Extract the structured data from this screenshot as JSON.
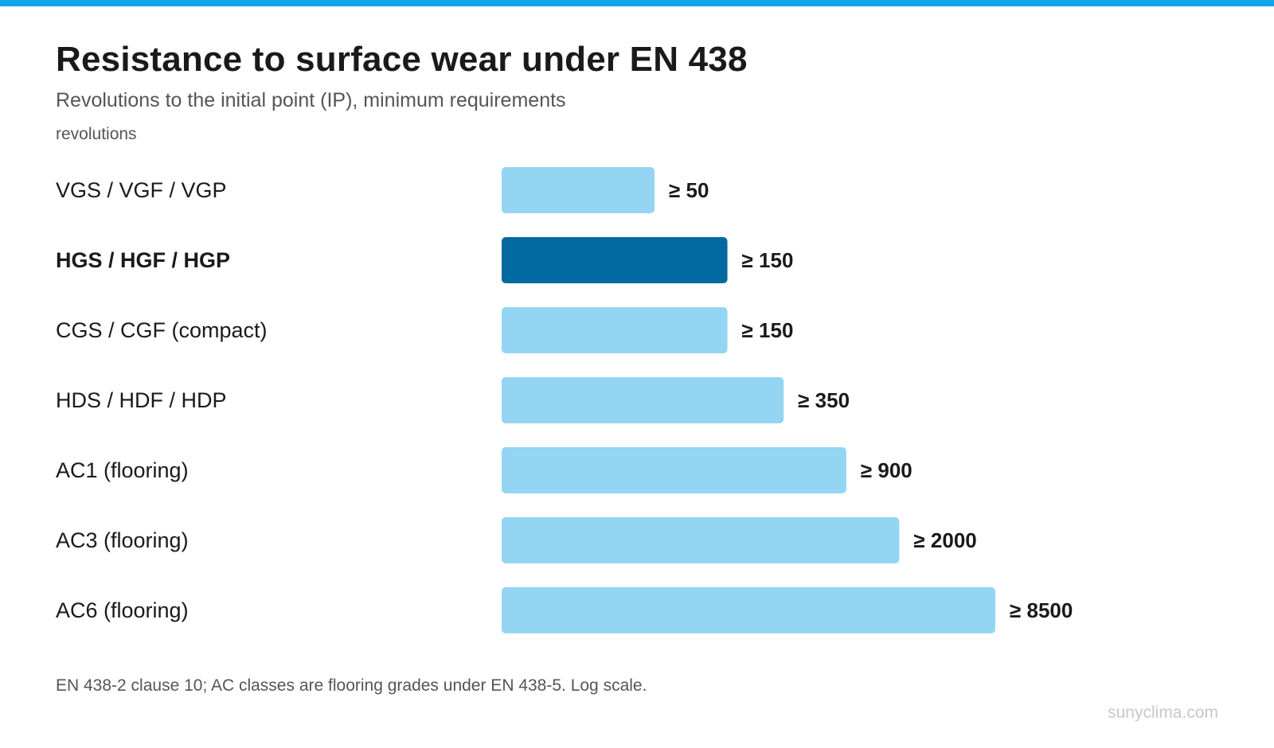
{
  "header": {
    "title": "Resistance to surface wear under EN 438",
    "subtitle": "Revolutions to the initial point (IP), minimum requirements",
    "unit_label": "revolutions"
  },
  "footer": {
    "note": "EN 438-2 clause 10; AC classes are flooring grades under EN 438-5. Log scale.",
    "credit": "sunyclima.com"
  },
  "colors": {
    "accent_bar": "#0ea5e9",
    "bar_default": "#93d5f3",
    "bar_highlight": "#0369a1"
  },
  "chart_data": {
    "type": "bar",
    "orientation": "horizontal",
    "scale": "log",
    "categories": [
      "VGS / VGF / VGP",
      "HGS / HGF / HGP",
      "CGS / CGF (compact)",
      "HDS / HDF / HDP",
      "AC1 (flooring)",
      "AC3 (flooring)",
      "AC6 (flooring)"
    ],
    "values": [
      50,
      150,
      150,
      350,
      900,
      2000,
      8500
    ],
    "value_labels": [
      "≥ 50",
      "≥ 150",
      "≥ 150",
      "≥ 350",
      "≥ 900",
      "≥ 2000",
      "≥ 8500"
    ],
    "highlight_index": 1,
    "ylabel": "revolutions",
    "grid": false,
    "legend": "none"
  }
}
